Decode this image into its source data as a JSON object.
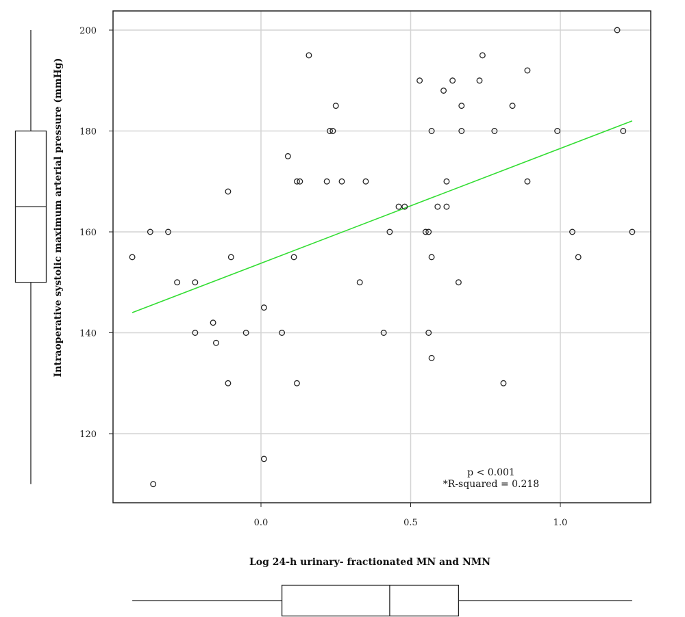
{
  "chart_data": {
    "type": "scatter",
    "xlabel": "Log 24-h urinary- fractionated MN and NMN",
    "ylabel": "Intraoperative systolic maximum arterial pressure (mmHg)",
    "xlim": [
      -0.5,
      1.3
    ],
    "ylim": [
      103,
      203
    ],
    "x_ticks": [
      0.0,
      0.5,
      1.0
    ],
    "x_tick_labels": [
      "0.0",
      "0.5",
      "1.0"
    ],
    "y_ticks": [
      120,
      140,
      160,
      180,
      200
    ],
    "y_tick_labels": [
      "120",
      "140",
      "160",
      "180",
      "200"
    ],
    "grid": true,
    "annotations": [
      "p < 0.001",
      "*R-squared = 0.218"
    ],
    "fit_line": {
      "x": [
        -0.43,
        1.24
      ],
      "y": [
        144,
        182
      ],
      "color": "#33dd33"
    },
    "point_color": "#222222",
    "points": [
      [
        -0.43,
        155
      ],
      [
        -0.37,
        160
      ],
      [
        -0.36,
        110
      ],
      [
        -0.31,
        160
      ],
      [
        -0.28,
        150
      ],
      [
        -0.22,
        150
      ],
      [
        -0.22,
        140
      ],
      [
        -0.16,
        142
      ],
      [
        -0.15,
        138
      ],
      [
        -0.11,
        130
      ],
      [
        -0.11,
        168
      ],
      [
        -0.1,
        155
      ],
      [
        -0.05,
        140
      ],
      [
        0.01,
        145
      ],
      [
        0.01,
        115
      ],
      [
        0.07,
        140
      ],
      [
        0.09,
        175
      ],
      [
        0.11,
        155
      ],
      [
        0.12,
        170
      ],
      [
        0.12,
        130
      ],
      [
        0.13,
        170
      ],
      [
        0.16,
        195
      ],
      [
        0.22,
        170
      ],
      [
        0.23,
        180
      ],
      [
        0.24,
        180
      ],
      [
        0.25,
        185
      ],
      [
        0.27,
        170
      ],
      [
        0.33,
        150
      ],
      [
        0.35,
        170
      ],
      [
        0.41,
        140
      ],
      [
        0.43,
        160
      ],
      [
        0.46,
        165
      ],
      [
        0.48,
        165
      ],
      [
        0.53,
        190
      ],
      [
        0.55,
        160
      ],
      [
        0.56,
        160
      ],
      [
        0.56,
        140
      ],
      [
        0.57,
        180
      ],
      [
        0.57,
        155
      ],
      [
        0.57,
        135
      ],
      [
        0.59,
        165
      ],
      [
        0.61,
        188
      ],
      [
        0.62,
        170
      ],
      [
        0.62,
        165
      ],
      [
        0.64,
        190
      ],
      [
        0.66,
        150
      ],
      [
        0.67,
        185
      ],
      [
        0.67,
        180
      ],
      [
        0.73,
        190
      ],
      [
        0.74,
        195
      ],
      [
        0.78,
        180
      ],
      [
        0.81,
        130
      ],
      [
        0.84,
        185
      ],
      [
        0.89,
        192
      ],
      [
        0.89,
        170
      ],
      [
        0.99,
        180
      ],
      [
        1.04,
        160
      ],
      [
        1.06,
        155
      ],
      [
        1.19,
        200
      ],
      [
        1.21,
        180
      ],
      [
        1.24,
        160
      ]
    ],
    "y_boxplot": {
      "min": 110,
      "q1": 150,
      "median": 165,
      "q3": 180,
      "max": 200
    },
    "x_boxplot": {
      "min": -0.43,
      "q1": 0.07,
      "median": 0.43,
      "q3": 0.66,
      "max": 1.24
    }
  }
}
